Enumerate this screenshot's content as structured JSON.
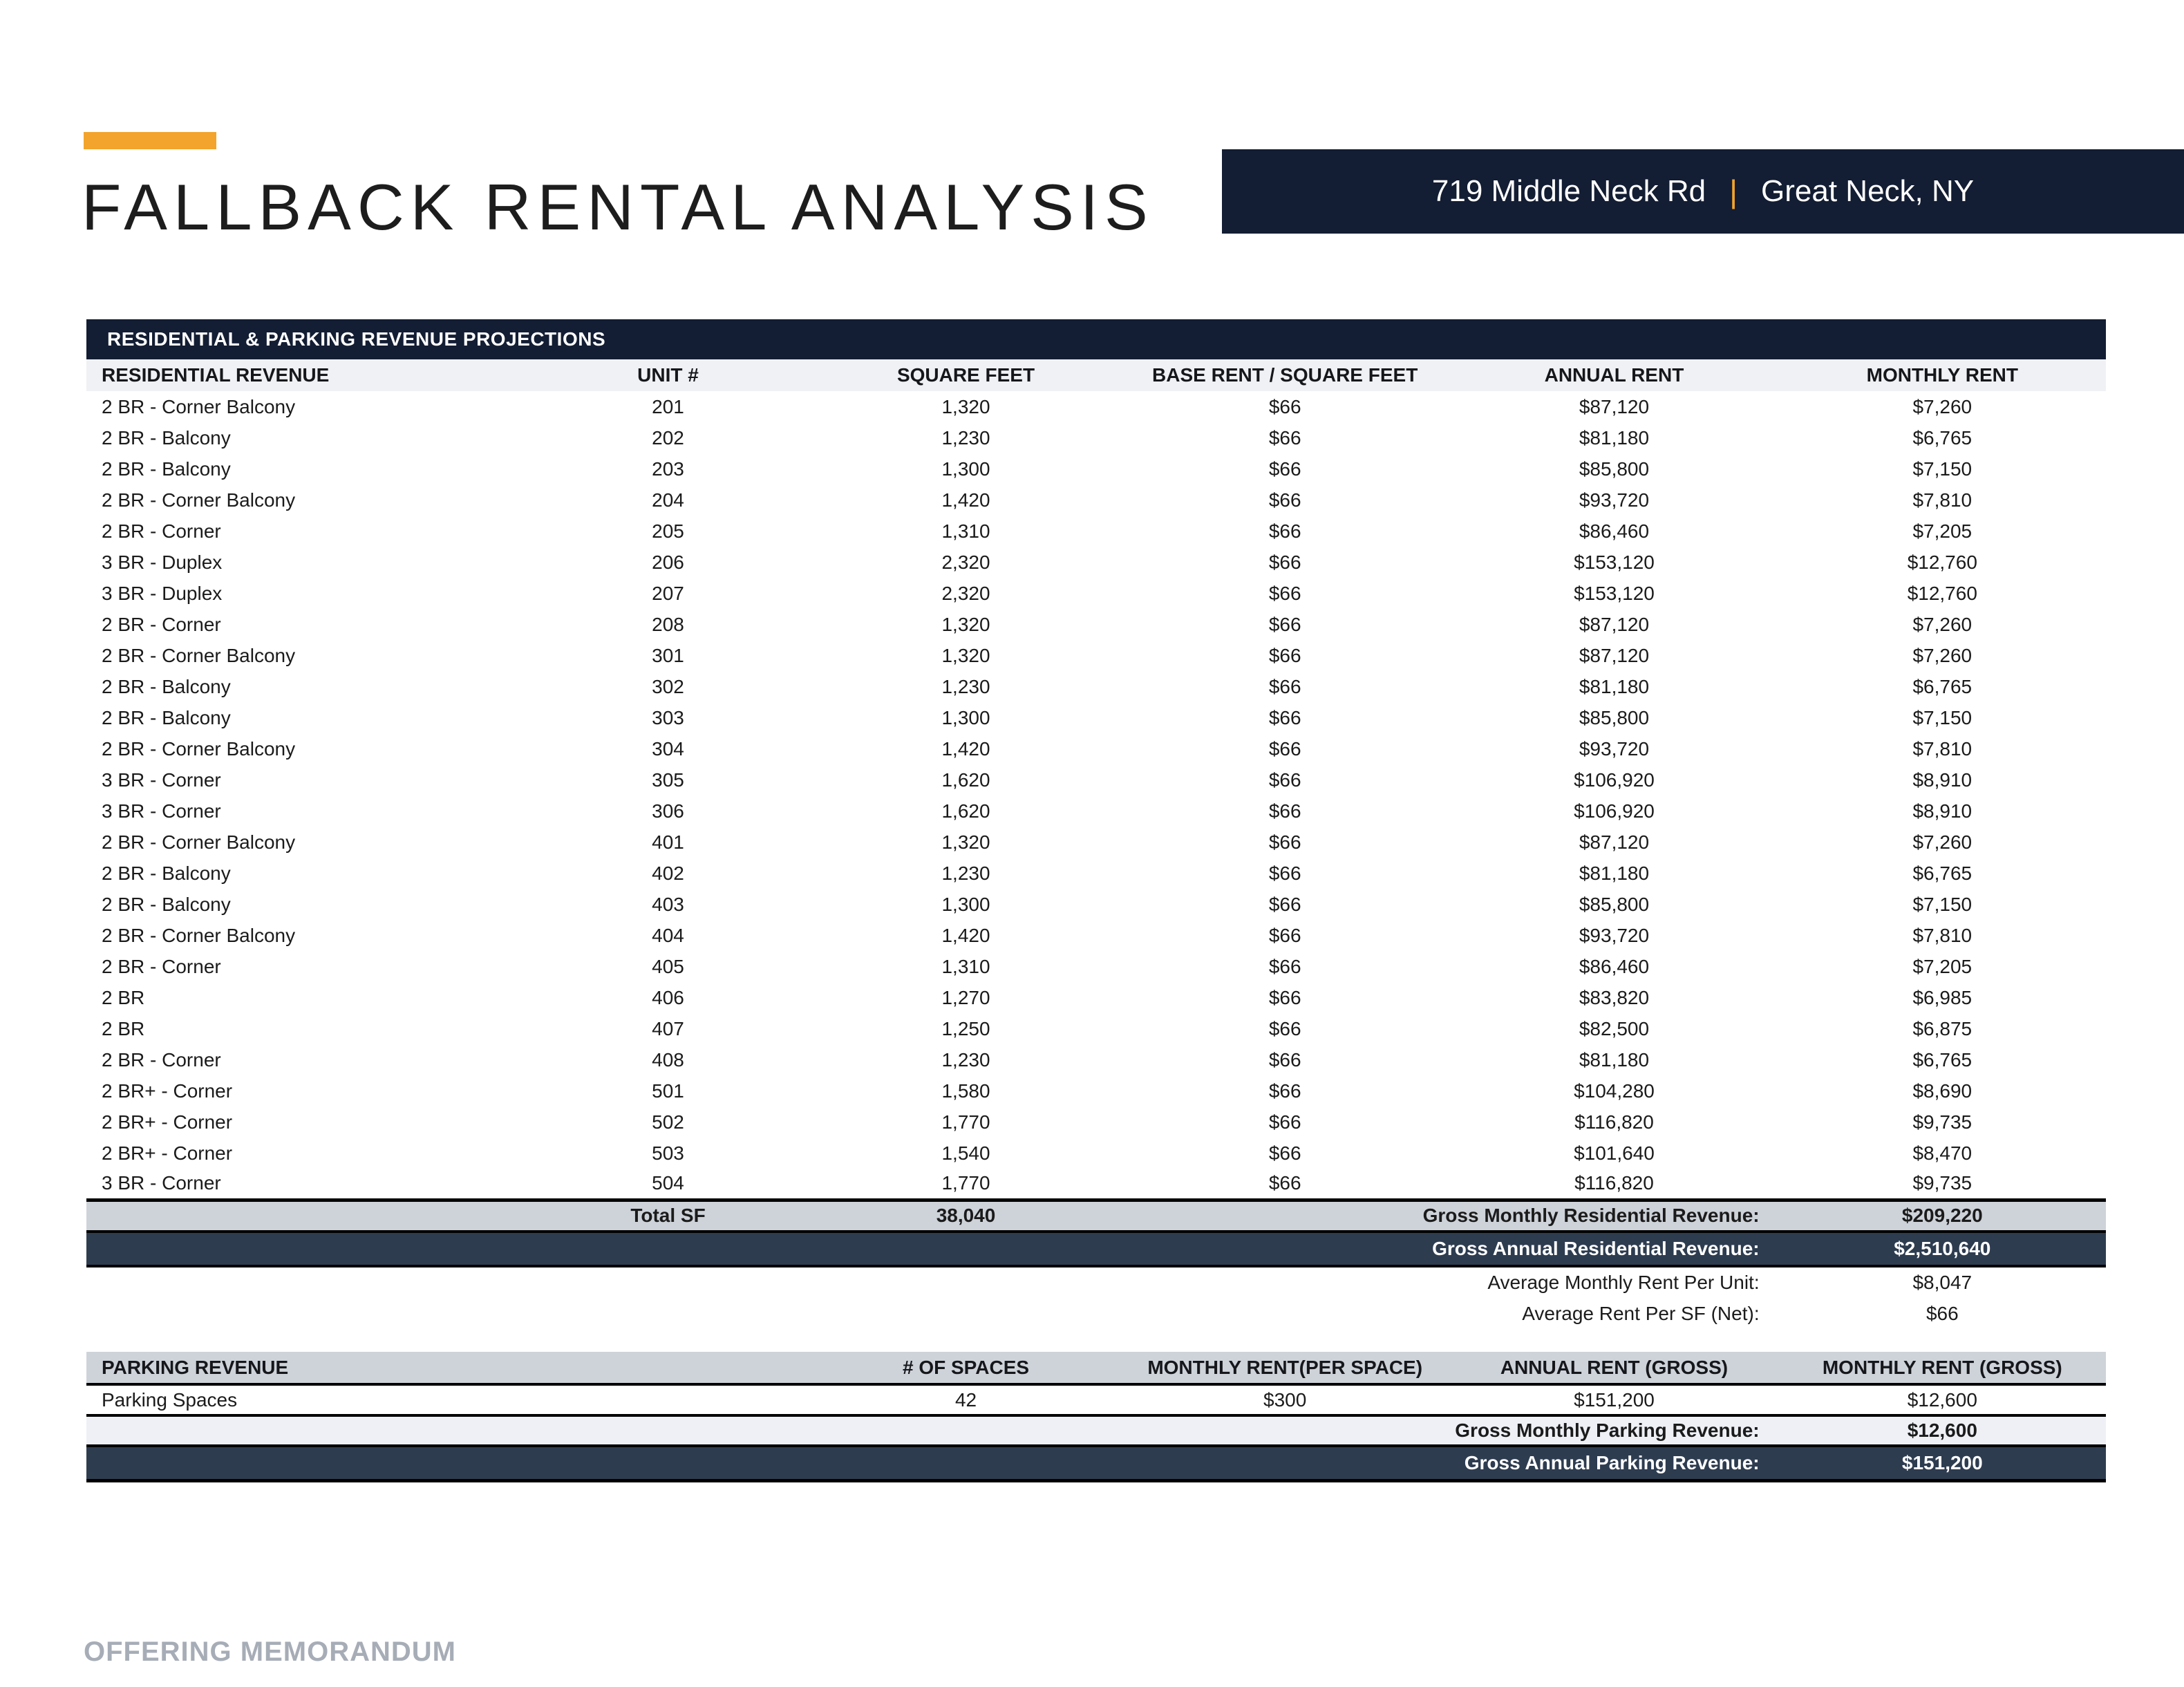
{
  "page": {
    "title": "FALLBACK RENTAL ANALYSIS",
    "footer": "OFFERING MEMORANDUM"
  },
  "banner": {
    "address": "719 Middle Neck Rd",
    "separator": "|",
    "city": "Great Neck, NY"
  },
  "colors": {
    "accent": "#F3A42C",
    "navy": "#131d33",
    "slate": "#2e3c50",
    "gray_row": "#ced3da",
    "light_row": "#eef0f5",
    "header_row": "#f0f1f4",
    "footer_gray": "#a7adb6"
  },
  "residential": {
    "section_title": "RESIDENTIAL & PARKING REVENUE PROJECTIONS",
    "columns": {
      "c1": "RESIDENTIAL REVENUE",
      "c2": "UNIT #",
      "c3": "SQUARE FEET",
      "c4": "BASE RENT / SQUARE FEET",
      "c5": "ANNUAL RENT",
      "c6": "MONTHLY RENT"
    },
    "rows": [
      {
        "type": "2 BR - Corner Balcony",
        "unit": "201",
        "sf": "1,320",
        "base": "$66",
        "annual": "$87,120",
        "monthly": "$7,260"
      },
      {
        "type": "2 BR - Balcony",
        "unit": "202",
        "sf": "1,230",
        "base": "$66",
        "annual": "$81,180",
        "monthly": "$6,765"
      },
      {
        "type": "2 BR - Balcony",
        "unit": "203",
        "sf": "1,300",
        "base": "$66",
        "annual": "$85,800",
        "monthly": "$7,150"
      },
      {
        "type": "2 BR - Corner Balcony",
        "unit": "204",
        "sf": "1,420",
        "base": "$66",
        "annual": "$93,720",
        "monthly": "$7,810"
      },
      {
        "type": "2 BR - Corner",
        "unit": "205",
        "sf": "1,310",
        "base": "$66",
        "annual": "$86,460",
        "monthly": "$7,205"
      },
      {
        "type": "3 BR - Duplex",
        "unit": "206",
        "sf": "2,320",
        "base": "$66",
        "annual": "$153,120",
        "monthly": "$12,760"
      },
      {
        "type": "3 BR - Duplex",
        "unit": "207",
        "sf": "2,320",
        "base": "$66",
        "annual": "$153,120",
        "monthly": "$12,760"
      },
      {
        "type": "2 BR - Corner",
        "unit": "208",
        "sf": "1,320",
        "base": "$66",
        "annual": "$87,120",
        "monthly": "$7,260"
      },
      {
        "type": "2 BR - Corner Balcony",
        "unit": "301",
        "sf": "1,320",
        "base": "$66",
        "annual": "$87,120",
        "monthly": "$7,260"
      },
      {
        "type": "2 BR - Balcony",
        "unit": "302",
        "sf": "1,230",
        "base": "$66",
        "annual": "$81,180",
        "monthly": "$6,765"
      },
      {
        "type": "2 BR - Balcony",
        "unit": "303",
        "sf": "1,300",
        "base": "$66",
        "annual": "$85,800",
        "monthly": "$7,150"
      },
      {
        "type": "2 BR - Corner Balcony",
        "unit": "304",
        "sf": "1,420",
        "base": "$66",
        "annual": "$93,720",
        "monthly": "$7,810"
      },
      {
        "type": "3 BR - Corner",
        "unit": "305",
        "sf": "1,620",
        "base": "$66",
        "annual": "$106,920",
        "monthly": "$8,910"
      },
      {
        "type": "3 BR - Corner",
        "unit": "306",
        "sf": "1,620",
        "base": "$66",
        "annual": "$106,920",
        "monthly": "$8,910"
      },
      {
        "type": "2 BR - Corner Balcony",
        "unit": "401",
        "sf": "1,320",
        "base": "$66",
        "annual": "$87,120",
        "monthly": "$7,260"
      },
      {
        "type": "2 BR - Balcony",
        "unit": "402",
        "sf": "1,230",
        "base": "$66",
        "annual": "$81,180",
        "monthly": "$6,765"
      },
      {
        "type": "2 BR - Balcony",
        "unit": "403",
        "sf": "1,300",
        "base": "$66",
        "annual": "$85,800",
        "monthly": "$7,150"
      },
      {
        "type": "2 BR - Corner Balcony",
        "unit": "404",
        "sf": "1,420",
        "base": "$66",
        "annual": "$93,720",
        "monthly": "$7,810"
      },
      {
        "type": "2 BR - Corner",
        "unit": "405",
        "sf": "1,310",
        "base": "$66",
        "annual": "$86,460",
        "monthly": "$7,205"
      },
      {
        "type": "2 BR",
        "unit": "406",
        "sf": "1,270",
        "base": "$66",
        "annual": "$83,820",
        "monthly": "$6,985"
      },
      {
        "type": "2 BR",
        "unit": "407",
        "sf": "1,250",
        "base": "$66",
        "annual": "$82,500",
        "monthly": "$6,875"
      },
      {
        "type": "2 BR - Corner",
        "unit": "408",
        "sf": "1,230",
        "base": "$66",
        "annual": "$81,180",
        "monthly": "$6,765"
      },
      {
        "type": "2 BR+ - Corner",
        "unit": "501",
        "sf": "1,580",
        "base": "$66",
        "annual": "$104,280",
        "monthly": "$8,690"
      },
      {
        "type": "2 BR+ - Corner",
        "unit": "502",
        "sf": "1,770",
        "base": "$66",
        "annual": "$116,820",
        "monthly": "$9,735"
      },
      {
        "type": "2 BR+ - Corner",
        "unit": "503",
        "sf": "1,540",
        "base": "$66",
        "annual": "$101,640",
        "monthly": "$8,470"
      },
      {
        "type": "3 BR - Corner",
        "unit": "504",
        "sf": "1,770",
        "base": "$66",
        "annual": "$116,820",
        "monthly": "$9,735"
      }
    ],
    "totals": {
      "total_sf_label": "Total SF",
      "total_sf_value": "38,040",
      "gross_monthly_label": "Gross Monthly Residential Revenue:",
      "gross_monthly_value": "$209,220",
      "gross_annual_label": "Gross Annual Residential Revenue:",
      "gross_annual_value": "$2,510,640",
      "avg_monthly_label": "Average Monthly Rent Per Unit:",
      "avg_monthly_value": "$8,047",
      "avg_sf_label": "Average Rent Per SF (Net):",
      "avg_sf_value": "$66"
    }
  },
  "parking": {
    "columns": {
      "c1": "PARKING REVENUE",
      "c3": "# OF SPACES",
      "c4": "MONTHLY RENT(PER SPACE)",
      "c5": "ANNUAL RENT (GROSS)",
      "c6": "MONTHLY RENT (GROSS)"
    },
    "row": {
      "label": "Parking Spaces",
      "spaces": "42",
      "monthly_per_space": "$300",
      "annual_gross": "$151,200",
      "monthly_gross": "$12,600"
    },
    "totals": {
      "gross_monthly_label": "Gross Monthly Parking Revenue:",
      "gross_monthly_value": "$12,600",
      "gross_annual_label": "Gross Annual Parking Revenue:",
      "gross_annual_value": "$151,200"
    }
  }
}
